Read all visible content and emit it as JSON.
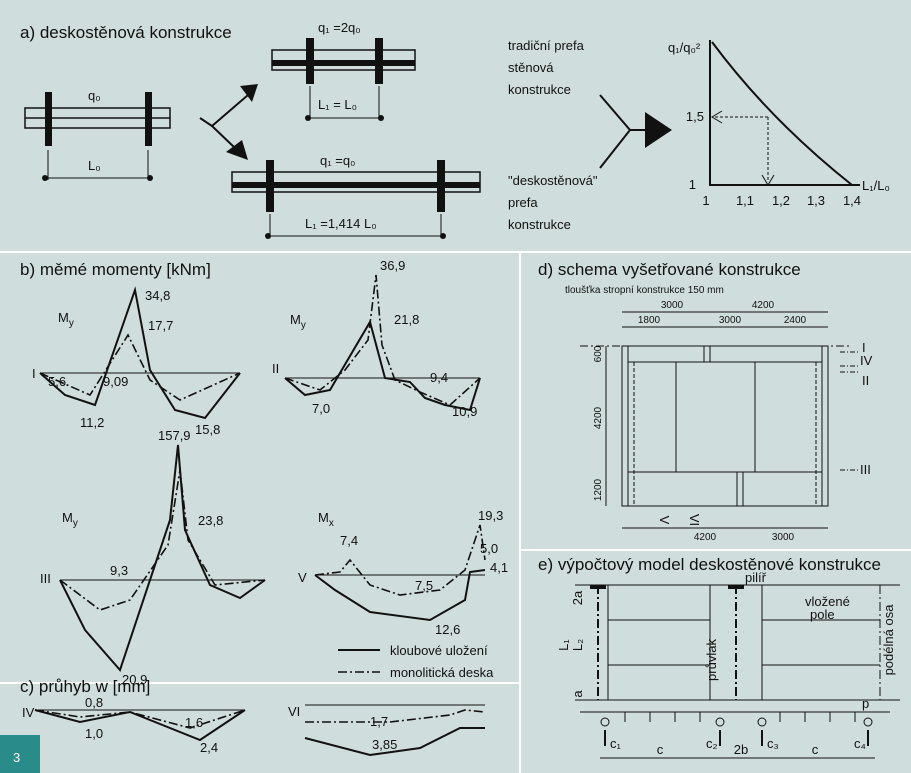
{
  "badge": "3",
  "section_a": {
    "title": "a) deskostěnová konstrukce",
    "beam_left": {
      "load": "q₀",
      "span": "L₀"
    },
    "beam_top": {
      "load": "q₁ =2q₀",
      "span": "L₁ = L₀"
    },
    "beam_bottom": {
      "load": "q₁ =q₀",
      "span": "L₁ =1,414 L₀"
    },
    "text_top": [
      "tradiční prefa",
      "stěnová",
      "konstrukce"
    ],
    "text_bottom": [
      "\"deskostěnová\"",
      "prefa",
      "konstrukce"
    ],
    "graph": {
      "y_label": "q₁/q₀²",
      "x_label": "L₁/L₀",
      "x_ticks": [
        "1",
        "1,1",
        "1,2",
        "1,3",
        "1,4"
      ],
      "y_ticks": [
        "1",
        "1,5"
      ]
    }
  },
  "section_b": {
    "title": "b) měmé momenty [kNm]",
    "plots": [
      {
        "section": "I",
        "moment": {
          "base": "M",
          "sub": "y"
        },
        "labels": [
          "34,8",
          "17,7",
          "5,6",
          "9,09",
          "11,2",
          "15,8"
        ]
      },
      {
        "section": "II",
        "moment": {
          "base": "M",
          "sub": "y"
        },
        "labels": [
          "36,9",
          "21,8",
          "7,0",
          "9,4",
          "10,9"
        ]
      },
      {
        "section": "III",
        "moment": {
          "base": "M",
          "sub": "y"
        },
        "labels": [
          "157,9",
          "23,8",
          "9,3",
          "20,9"
        ]
      },
      {
        "section": "V",
        "moment": {
          "base": "M",
          "sub": "x"
        },
        "labels": [
          "7,4",
          "19,3",
          "5,0",
          "4,1",
          "7,5",
          "12,6"
        ]
      }
    ]
  },
  "legend": [
    "kloubové uložení",
    "monolitická deska"
  ],
  "section_c": {
    "title": "c) průhyb w [mm]",
    "plots": [
      {
        "section": "IV",
        "labels": [
          "0,8",
          "1,0",
          "1,6",
          "2,4"
        ]
      },
      {
        "section": "VI",
        "labels": [
          "1,7",
          "3,85"
        ]
      }
    ]
  },
  "section_d": {
    "title": "d) schema vyšetřované konstrukce",
    "subtitle": "tloušťka stropní konstrukce 150 mm",
    "dims_top": [
      "3000",
      "4200"
    ],
    "dims_top2": [
      "1800",
      "3000",
      "2400"
    ],
    "dims_left": [
      "600",
      "4200",
      "1200"
    ],
    "dims_bottom": [
      "4200",
      "3000"
    ],
    "sections_right": [
      "I",
      "IV",
      "II",
      "III"
    ],
    "sections_bottom": [
      "V",
      "VI"
    ]
  },
  "section_e": {
    "title": "e) výpočtový model deskostěnové konstrukce",
    "pillar": "pilíř",
    "inserted_field": [
      "vložené",
      "pole"
    ],
    "girder": "průvlak",
    "axis": "podélná osa",
    "left_dims": [
      "L₁",
      "L₂",
      "2a",
      "a"
    ],
    "load": "p",
    "springs": [
      "c₁",
      "c₂",
      "c₃",
      "c₄"
    ],
    "bottom_dims": [
      "c",
      "2b",
      "c"
    ]
  }
}
